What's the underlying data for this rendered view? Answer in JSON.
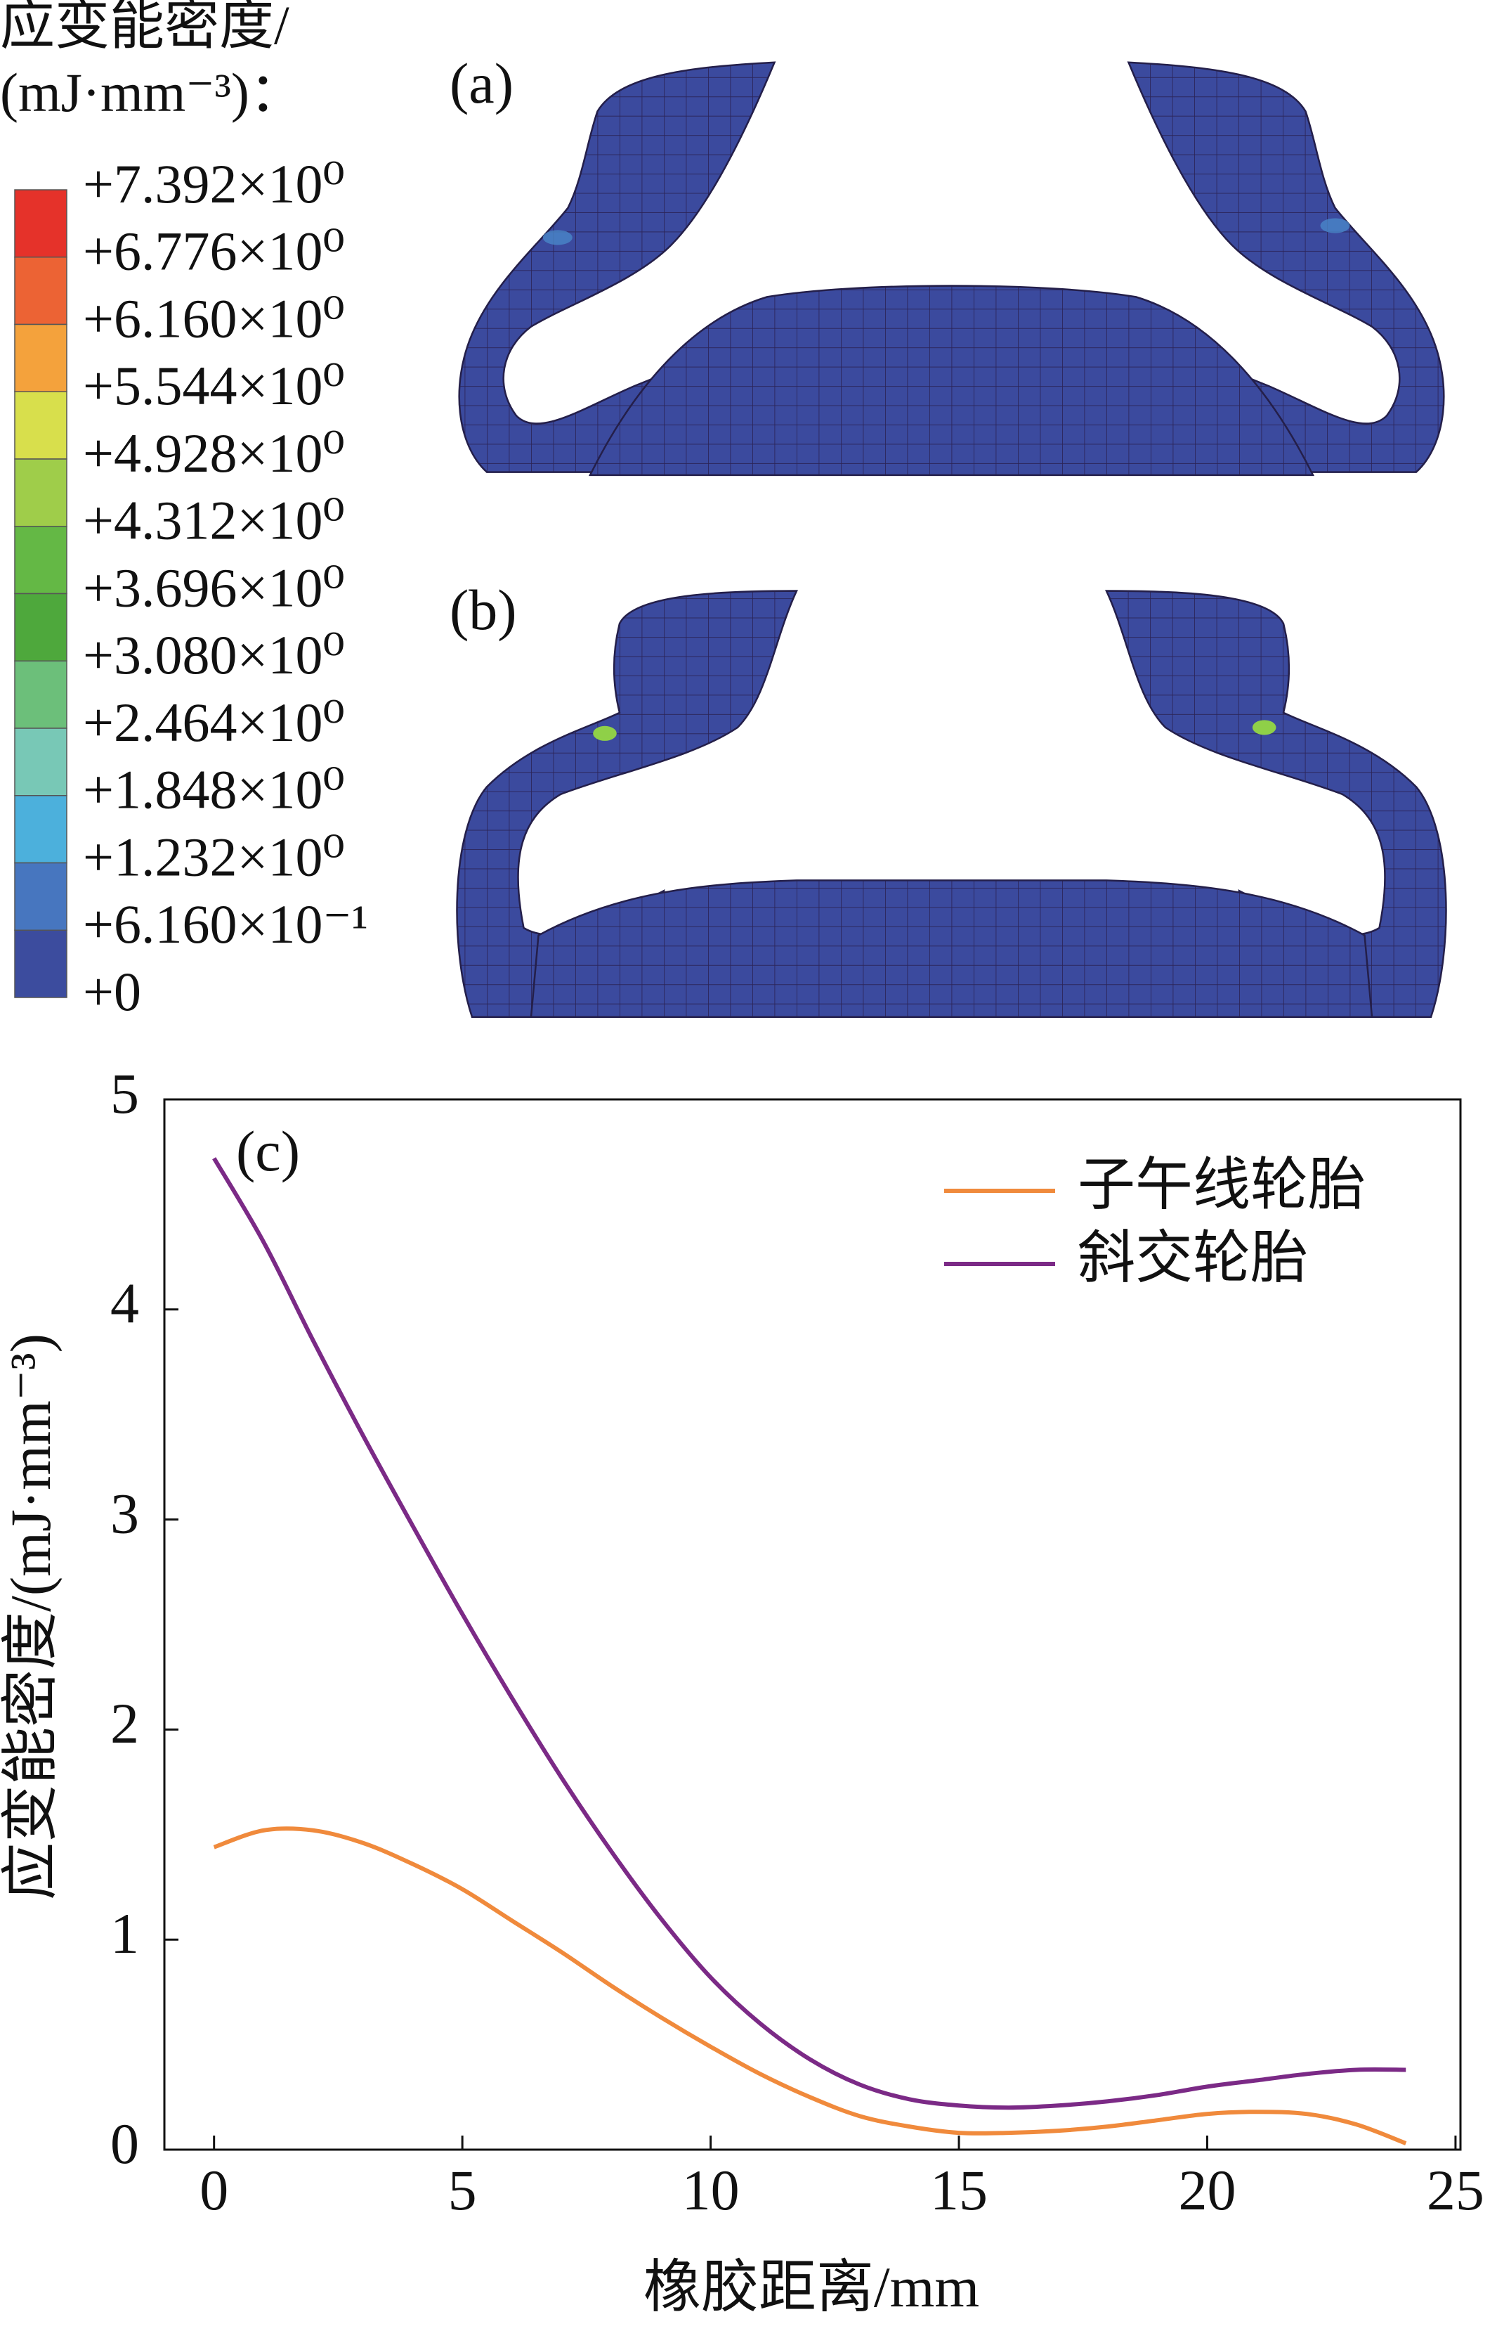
{
  "contour_legend": {
    "title": "应变能密度/",
    "unit": "(mJ·mm⁻³)：",
    "levels": [
      {
        "value": 7.392,
        "label": "+7.392×10⁰"
      },
      {
        "value": 6.776,
        "label": "+6.776×10⁰"
      },
      {
        "value": 6.16,
        "label": "+6.160×10⁰"
      },
      {
        "value": 5.544,
        "label": "+5.544×10⁰"
      },
      {
        "value": 4.928,
        "label": "+4.928×10⁰"
      },
      {
        "value": 4.312,
        "label": "+4.312×10⁰"
      },
      {
        "value": 3.696,
        "label": "+3.696×10⁰"
      },
      {
        "value": 3.08,
        "label": "+3.080×10⁰"
      },
      {
        "value": 2.464,
        "label": "+2.464×10⁰"
      },
      {
        "value": 1.848,
        "label": "+1.848×10⁰"
      },
      {
        "value": 1.232,
        "label": "+1.232×10⁰"
      },
      {
        "value": 0.616,
        "label": "+6.160×10⁻¹"
      },
      {
        "value": 0,
        "label": "+0"
      }
    ],
    "colors": [
      "#e5322a",
      "#ec6334",
      "#f4a23c",
      "#d8df4c",
      "#9fcd4a",
      "#64b845",
      "#4ea83c",
      "#6cbf7a",
      "#78c8b6",
      "#4cb0dc",
      "#4776bf",
      "#3c4c9e"
    ]
  },
  "panels": {
    "a": "(a)",
    "b": "(b)"
  },
  "chart_data": {
    "type": "line",
    "title": "(c)",
    "xlabel": "橡胶距离/mm",
    "ylabel": "应变能密度/(mJ·mm⁻³)",
    "x": [
      0,
      1,
      2,
      3,
      4,
      5,
      6,
      7,
      8,
      9,
      10,
      11,
      12,
      13,
      14,
      15,
      16,
      17,
      18,
      19,
      20,
      21,
      22,
      23,
      24
    ],
    "series": [
      {
        "name": "子午线轮胎",
        "color": "#f08a3c",
        "values": [
          1.44,
          1.52,
          1.52,
          1.46,
          1.36,
          1.24,
          1.09,
          0.94,
          0.78,
          0.63,
          0.49,
          0.36,
          0.25,
          0.16,
          0.11,
          0.08,
          0.08,
          0.09,
          0.11,
          0.14,
          0.17,
          0.18,
          0.17,
          0.12,
          0.03
        ]
      },
      {
        "name": "斜交轮胎",
        "color": "#7b2a86",
        "values": [
          4.72,
          4.32,
          3.85,
          3.4,
          2.97,
          2.55,
          2.15,
          1.77,
          1.42,
          1.1,
          0.82,
          0.6,
          0.43,
          0.31,
          0.24,
          0.21,
          0.2,
          0.21,
          0.23,
          0.26,
          0.3,
          0.33,
          0.36,
          0.38,
          0.38
        ]
      }
    ],
    "xlim": [
      -1,
      25.1
    ],
    "ylim": [
      0,
      5
    ],
    "xticks": [
      0,
      5,
      10,
      15,
      20,
      25
    ],
    "yticks": [
      0,
      1,
      2,
      3,
      4,
      5
    ],
    "legend": "upper right"
  }
}
